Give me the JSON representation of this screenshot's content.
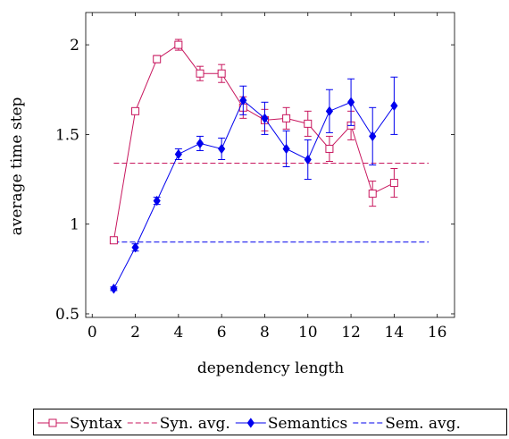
{
  "chart_data": {
    "type": "line",
    "xlabel": "dependency length",
    "ylabel": "average time step",
    "xlim": [
      -0.3,
      16.8
    ],
    "ylim": [
      0.48,
      2.18
    ],
    "xticks": [
      0,
      2,
      4,
      6,
      8,
      10,
      12,
      14,
      16
    ],
    "yticks": [
      0.5,
      1,
      1.5,
      2
    ],
    "ytick_labels": [
      "0.5",
      "1",
      "1.5",
      "2"
    ],
    "grid": false,
    "legend_position": "bottom",
    "series": [
      {
        "name": "Syntax",
        "kind": "line-errorbars",
        "color": "#c8175e",
        "marker": "square-open",
        "x": [
          1,
          2,
          3,
          4,
          5,
          6,
          7,
          8,
          9,
          10,
          11,
          12,
          13,
          14
        ],
        "y": [
          0.91,
          1.63,
          1.92,
          2.0,
          1.84,
          1.84,
          1.65,
          1.58,
          1.59,
          1.56,
          1.42,
          1.55,
          1.17,
          1.23
        ],
        "err": [
          0.01,
          0.01,
          0.02,
          0.03,
          0.04,
          0.05,
          0.06,
          0.06,
          0.06,
          0.07,
          0.07,
          0.08,
          0.07,
          0.08
        ]
      },
      {
        "name": "Syn. avg.",
        "kind": "reference-line",
        "color": "#c8175e",
        "y": 1.34,
        "x_range": [
          1,
          15.6
        ]
      },
      {
        "name": "Semantics",
        "kind": "line-errorbars",
        "color": "#0000ee",
        "marker": "diamond-filled",
        "x": [
          1,
          2,
          3,
          4,
          5,
          6,
          7,
          8,
          9,
          10,
          11,
          12,
          13,
          14
        ],
        "y": [
          0.64,
          0.87,
          1.13,
          1.39,
          1.45,
          1.42,
          1.69,
          1.59,
          1.42,
          1.36,
          1.63,
          1.68,
          1.49,
          1.66
        ],
        "err": [
          0.01,
          0.02,
          0.02,
          0.03,
          0.04,
          0.06,
          0.08,
          0.09,
          0.1,
          0.11,
          0.12,
          0.13,
          0.16,
          0.16
        ]
      },
      {
        "name": "Sem. avg.",
        "kind": "reference-line",
        "color": "#0000ee",
        "y": 0.9,
        "x_range": [
          1,
          15.6
        ]
      }
    ]
  }
}
